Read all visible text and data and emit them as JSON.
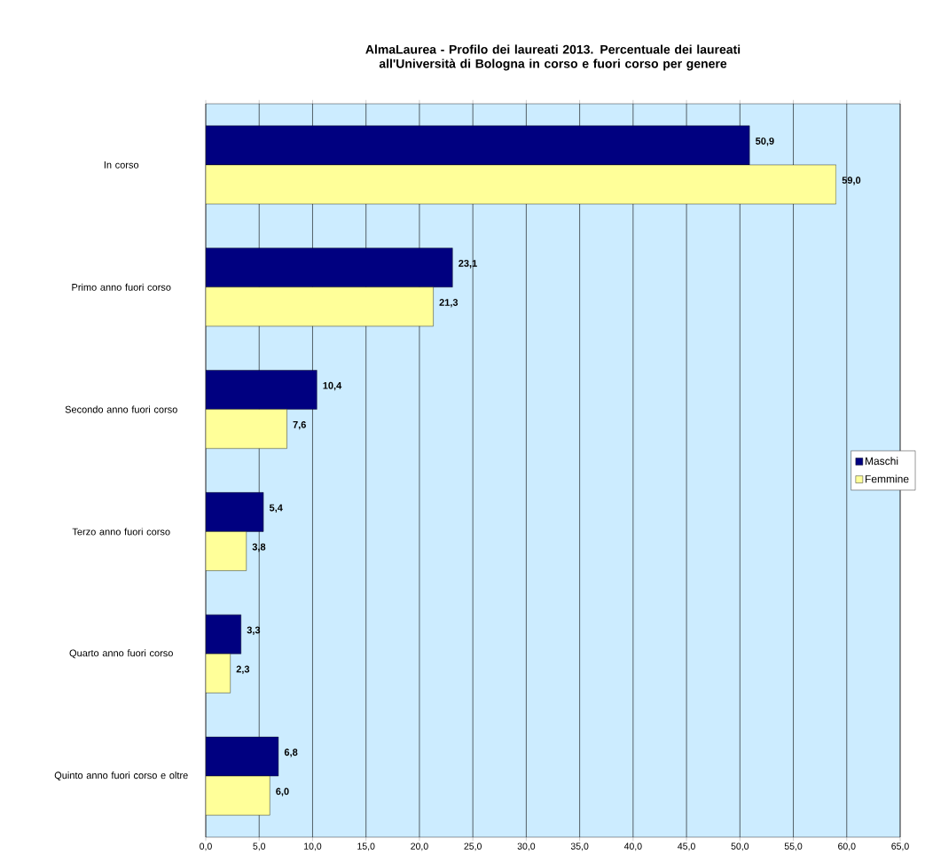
{
  "chart_data": {
    "type": "bar",
    "orientation": "horizontal",
    "title": "AlmaLaurea - Profilo dei laureati 2013. Percentuale dei laureati all'Università di Bologna in corso e fuori corso per genere",
    "categories": [
      "In corso",
      "Primo anno fuori corso",
      "Secondo anno fuori corso",
      "Terzo anno fuori corso",
      "Quarto anno fuori corso",
      "Quinto anno fuori corso e oltre"
    ],
    "series": [
      {
        "name": "Maschi",
        "color": "#000080",
        "values": [
          50.9,
          23.1,
          10.4,
          5.4,
          3.3,
          6.8
        ],
        "value_labels": [
          "50,9",
          "23,1",
          "10,4",
          "5,4",
          "3,3",
          "6,8"
        ]
      },
      {
        "name": "Femmine",
        "color": "#ffff99",
        "values": [
          59.0,
          21.3,
          7.6,
          3.8,
          2.3,
          6.0
        ],
        "value_labels": [
          "59,0",
          "21,3",
          "7,6",
          "3,8",
          "2,3",
          "6,0"
        ]
      }
    ],
    "xlim": [
      0,
      65
    ],
    "xticks": [
      {
        "value": 0,
        "label": "0,0"
      },
      {
        "value": 5,
        "label": "5,0"
      },
      {
        "value": 10,
        "label": "10,0"
      },
      {
        "value": 15,
        "label": "15,0"
      },
      {
        "value": 20,
        "label": "20,0"
      },
      {
        "value": 25,
        "label": "25,0"
      },
      {
        "value": 30,
        "label": "30,0"
      },
      {
        "value": 35,
        "label": "35,0"
      },
      {
        "value": 40,
        "label": "40,0"
      },
      {
        "value": 45,
        "label": "45,0"
      },
      {
        "value": 50,
        "label": "50,0"
      },
      {
        "value": 55,
        "label": "55,0"
      },
      {
        "value": 60,
        "label": "60,0"
      },
      {
        "value": 65,
        "label": "65,0"
      }
    ],
    "grid": "x",
    "legend": "right"
  }
}
